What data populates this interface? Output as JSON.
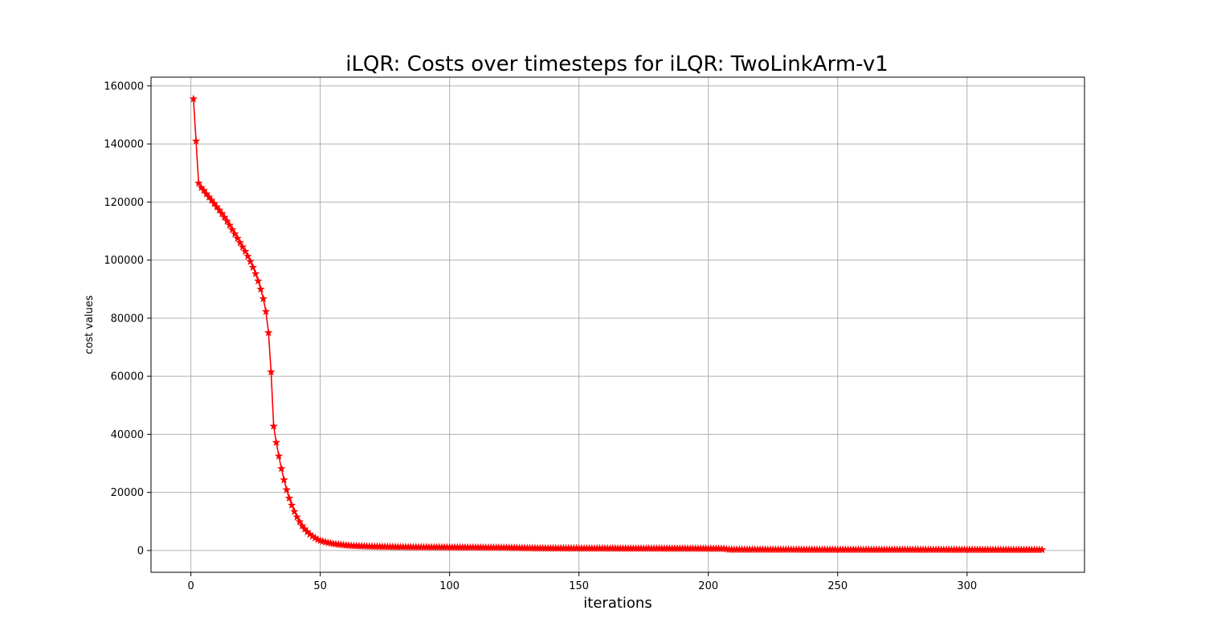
{
  "chart_data": {
    "type": "line",
    "title": "iLQR: Costs over timesteps for iLQR: TwoLinkArm-v1",
    "xlabel": "iterations",
    "ylabel": "cost values",
    "xlim": [
      -15.4,
      345.4
    ],
    "ylim": [
      -7500,
      163000
    ],
    "xticks": [
      0,
      50,
      100,
      150,
      200,
      250,
      300
    ],
    "yticks": [
      0,
      20000,
      40000,
      60000,
      80000,
      100000,
      120000,
      140000,
      160000
    ],
    "grid": true,
    "line_color": "#ff0000",
    "marker": "star",
    "series": [
      {
        "x": [
          1,
          2,
          3,
          4,
          5,
          6,
          7,
          8,
          9,
          10,
          11,
          12,
          13,
          14,
          15,
          16,
          17,
          18,
          19,
          20,
          21,
          22,
          23,
          24,
          25,
          26,
          27,
          28,
          29,
          30,
          31,
          32,
          33,
          34,
          35,
          36,
          37,
          38,
          39,
          40,
          41,
          42,
          43,
          44,
          45,
          46,
          47,
          48,
          49,
          50,
          52,
          54,
          56,
          58,
          60,
          63,
          66,
          70,
          75,
          80,
          90,
          100,
          120,
          134,
          150,
          180,
          206,
          208,
          250,
          300,
          329
        ],
        "y": [
          155500,
          141000,
          126500,
          125000,
          124000,
          122800,
          121700,
          120600,
          119500,
          118300,
          117200,
          116000,
          114700,
          113400,
          112000,
          110500,
          109000,
          107500,
          106000,
          104500,
          103000,
          101300,
          99500,
          97500,
          95300,
          92800,
          90000,
          86700,
          82300,
          75000,
          61500,
          42800,
          37200,
          32500,
          28200,
          24300,
          20900,
          18000,
          15600,
          13400,
          11500,
          9900,
          8500,
          7400,
          6400,
          5600,
          4900,
          4300,
          3800,
          3400,
          2900,
          2500,
          2200,
          2000,
          1800,
          1600,
          1500,
          1400,
          1300,
          1200,
          1150,
          1100,
          1000,
          800,
          750,
          700,
          650,
          350,
          300,
          280,
          250
        ]
      }
    ]
  }
}
